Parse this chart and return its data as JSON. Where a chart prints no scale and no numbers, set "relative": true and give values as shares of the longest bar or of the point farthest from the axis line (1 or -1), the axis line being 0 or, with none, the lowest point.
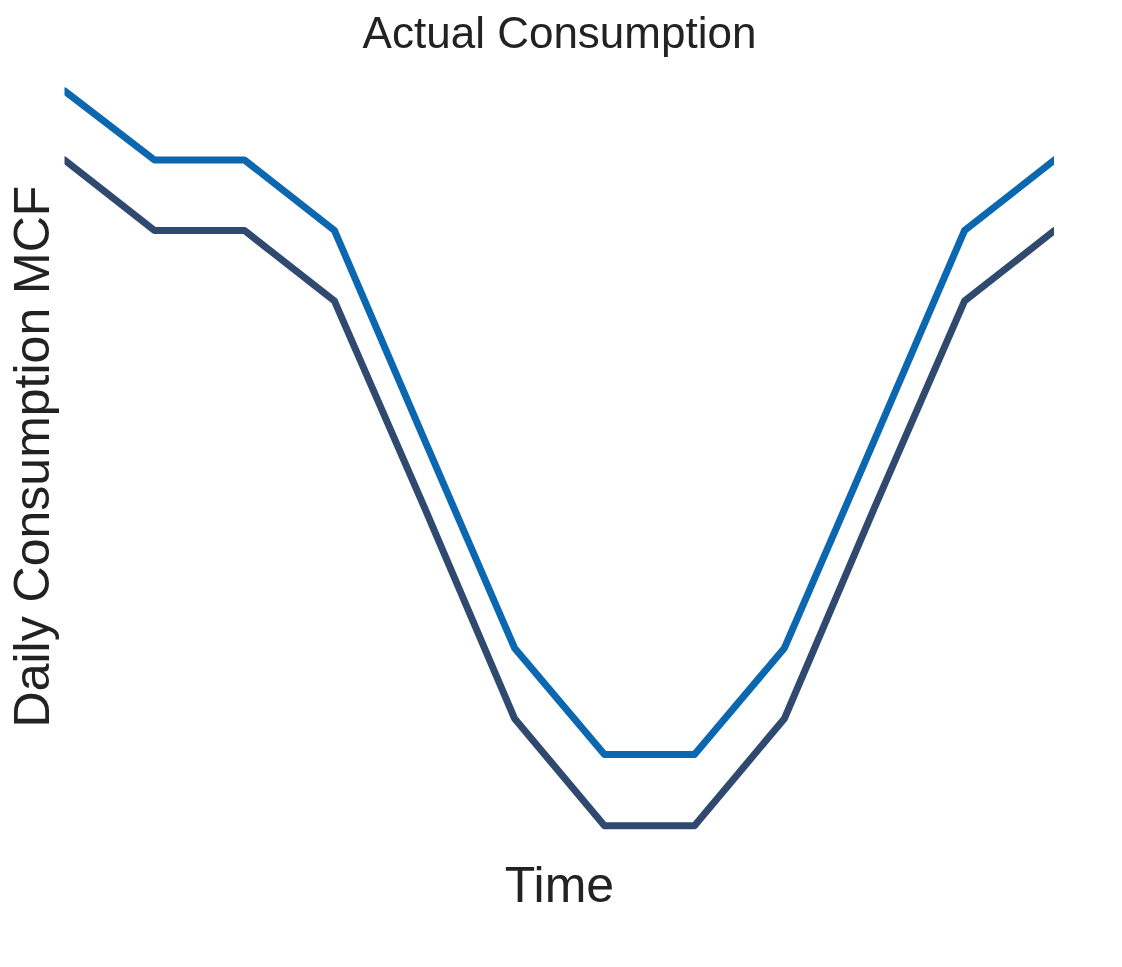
{
  "chart_data": {
    "type": "line",
    "title": "Actual Consumption",
    "xlabel": "Time",
    "ylabel": "Daily Consumption MCF",
    "relative": true,
    "categories": [
      null,
      null,
      null,
      null,
      null,
      null,
      null,
      null,
      null,
      null,
      null,
      null
    ],
    "series": [
      {
        "color": "#0a67b0",
        "values": [
          1,
          0.906,
          0.906,
          0.81,
          0.525,
          0.242,
          0.097,
          0.097,
          0.242,
          0.525,
          0.81,
          0.906
        ]
      },
      {
        "color": "#2f4a6e",
        "values": [
          0.906,
          0.81,
          0.81,
          0.714,
          0.433,
          0.146,
          0,
          0,
          0.146,
          0.433,
          0.714,
          0.81
        ]
      }
    ]
  }
}
